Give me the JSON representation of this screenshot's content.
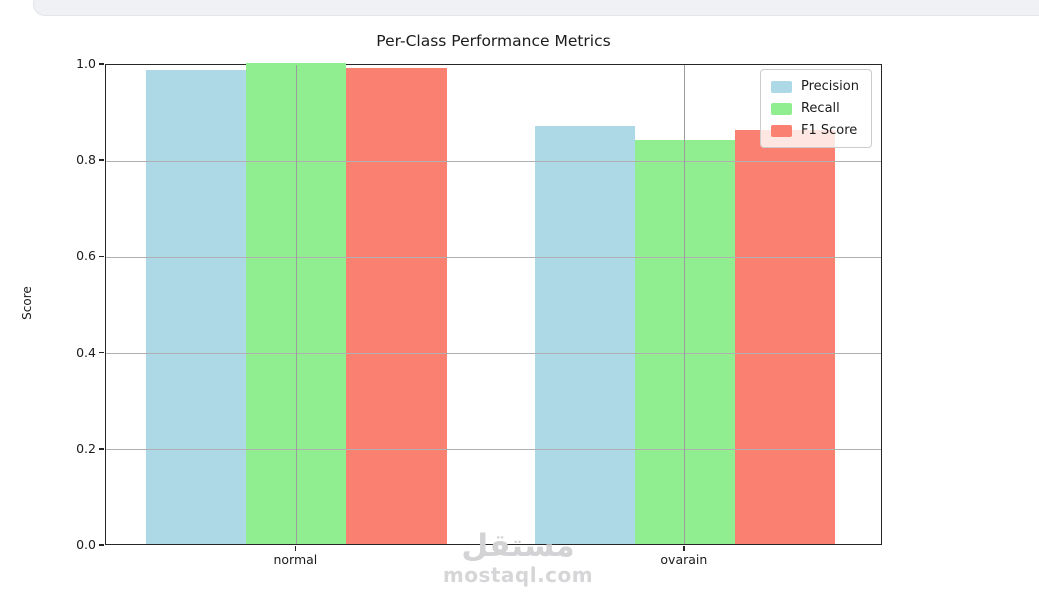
{
  "watermark": {
    "arabic": "مستقل",
    "latin": "mostaql.com"
  },
  "chart_data": {
    "type": "bar",
    "title": "Per-Class Performance Metrics",
    "xlabel": "",
    "ylabel": "Score",
    "categories": [
      "normal",
      "ovarain"
    ],
    "series": [
      {
        "name": "Precision",
        "color": "#ADD8E6",
        "values": [
          0.985,
          0.87
        ]
      },
      {
        "name": "Recall",
        "color": "#90EE90",
        "values": [
          1.0,
          0.84
        ]
      },
      {
        "name": "F1 Score",
        "color": "#FA8072",
        "values": [
          0.99,
          0.86
        ]
      }
    ],
    "ylim": [
      0.0,
      1.0
    ],
    "yticks": [
      0.0,
      0.2,
      0.4,
      0.6,
      0.8,
      1.0
    ],
    "grid": true,
    "grid_color": "#b0b0b0",
    "legend_position": "upper right",
    "spine_color": "#262626"
  }
}
